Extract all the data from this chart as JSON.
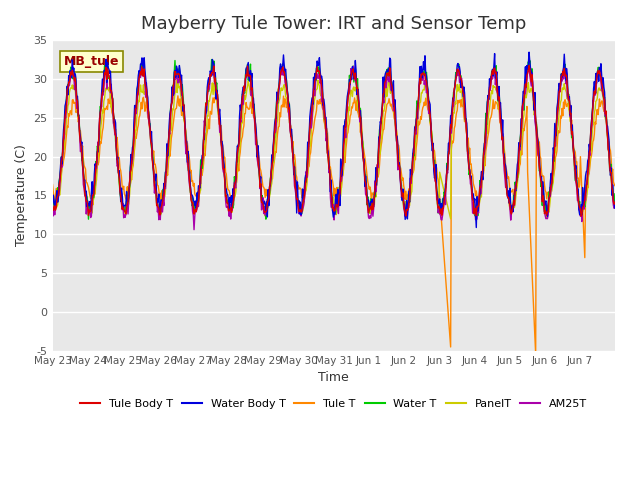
{
  "title": "Mayberry Tule Tower: IRT and Sensor Temp",
  "ylabel": "Temperature (C)",
  "xlabel": "Time",
  "annotation": "MB_tule",
  "ylim": [
    -5,
    35
  ],
  "yticks": [
    -5,
    0,
    5,
    10,
    15,
    20,
    25,
    30,
    35
  ],
  "xtick_labels": [
    "May 23",
    "May 24",
    "May 25",
    "May 26",
    "May 27",
    "May 28",
    "May 29",
    "May 30",
    "May 31",
    "Jun 1",
    "Jun 2",
    "Jun 3",
    "Jun 4",
    "Jun 5",
    "Jun 6",
    "Jun 7"
  ],
  "legend_entries": [
    "Tule Body T",
    "Water Body T",
    "Tule T",
    "Water T",
    "PanelT",
    "AM25T"
  ],
  "line_colors": [
    "#dd0000",
    "#0000dd",
    "#ff8800",
    "#00cc00",
    "#cccc00",
    "#aa00aa"
  ],
  "background_color": "#e8e8e8",
  "title_fontsize": 13,
  "n_days": 16,
  "seed": 42
}
